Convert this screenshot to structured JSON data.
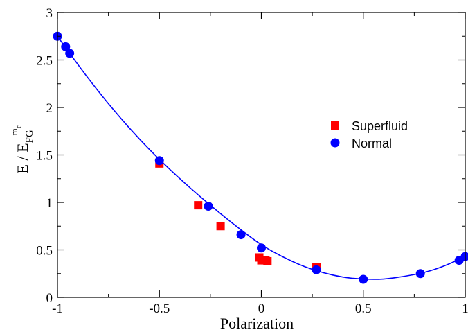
{
  "chart_data": {
    "type": "scatter",
    "title": "",
    "xlabel": "Polarization",
    "ylabel_main": "E / E",
    "ylabel_sub": "FG",
    "ylabel_sup": "m",
    "ylabel_sup_sub": "r",
    "xlim": [
      -1,
      1
    ],
    "ylim": [
      0,
      3
    ],
    "x_ticks": [
      -1,
      -0.5,
      0,
      0.5,
      1
    ],
    "x_tick_labels": [
      "-1",
      "-0.5",
      "0",
      "0.5",
      "1"
    ],
    "y_ticks": [
      0,
      0.5,
      1,
      1.5,
      2,
      2.5,
      3
    ],
    "y_tick_labels": [
      "0",
      "0.5",
      "1",
      "1.5",
      "2",
      "2.5",
      "3"
    ],
    "grid": false,
    "legend_position": "right",
    "series": [
      {
        "name": "Superfluid",
        "marker": "square",
        "color": "#ff0000",
        "x": [
          -0.5,
          -0.31,
          -0.2,
          -0.01,
          0.0,
          0.02,
          0.03,
          0.27
        ],
        "y": [
          1.41,
          0.97,
          0.75,
          0.42,
          0.39,
          0.39,
          0.38,
          0.32
        ]
      },
      {
        "name": "Normal",
        "marker": "circle",
        "color": "#0000ff",
        "x": [
          -1.0,
          -0.96,
          -0.94,
          -0.5,
          -0.26,
          -0.1,
          0.0,
          0.27,
          0.5,
          0.78,
          0.97,
          1.0
        ],
        "y": [
          2.75,
          2.64,
          2.57,
          1.44,
          0.96,
          0.66,
          0.52,
          0.29,
          0.19,
          0.25,
          0.39,
          0.43
        ]
      }
    ],
    "fit_curve": {
      "color": "#0000ff",
      "x": [
        -1.0,
        -0.9,
        -0.8,
        -0.7,
        -0.6,
        -0.5,
        -0.4,
        -0.3,
        -0.2,
        -0.1,
        0.0,
        0.1,
        0.2,
        0.3,
        0.4,
        0.5,
        0.6,
        0.7,
        0.8,
        0.9,
        1.0
      ],
      "y": [
        2.75,
        2.45,
        2.17,
        1.91,
        1.67,
        1.45,
        1.25,
        1.06,
        0.88,
        0.71,
        0.55,
        0.43,
        0.33,
        0.26,
        0.21,
        0.19,
        0.19,
        0.22,
        0.26,
        0.33,
        0.43
      ]
    }
  }
}
